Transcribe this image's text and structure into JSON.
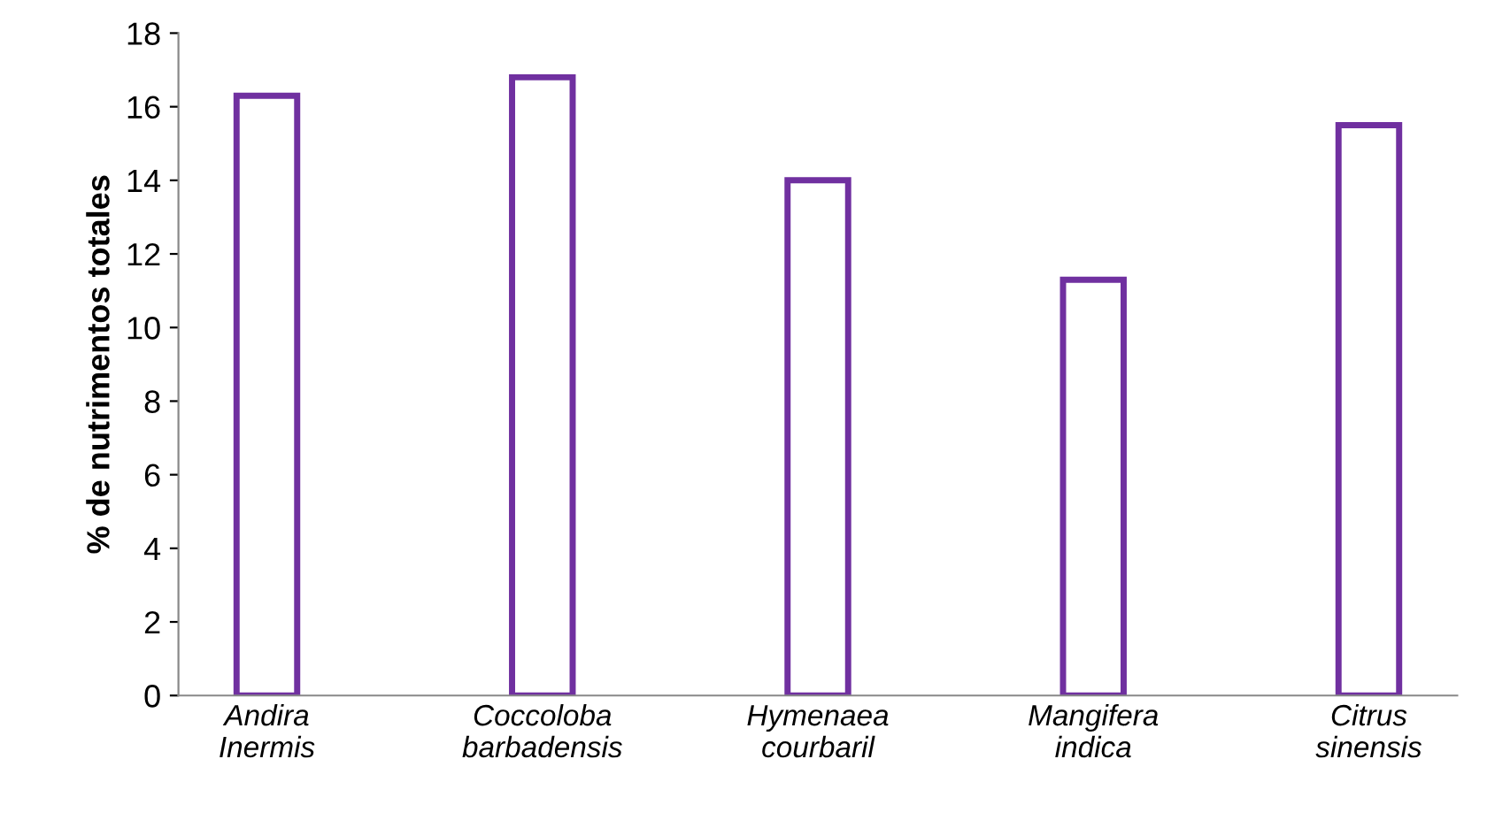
{
  "chart_data": {
    "type": "bar",
    "ylabel": "% de nutrimentos totales",
    "categories": [
      "Andira\nInermis",
      "Coccoloba\nbarbadensis",
      "Hymenaea\ncourbaril",
      "Mangifera\nindica",
      "Citrus\nsinensis"
    ],
    "values": [
      16.3,
      16.8,
      14.0,
      11.3,
      15.5
    ],
    "color": "#7030a0",
    "ylim": [
      0,
      18
    ],
    "yticks": [
      0,
      2,
      4,
      6,
      8,
      10,
      12,
      14,
      16,
      18
    ],
    "grid": false,
    "legend": false
  }
}
